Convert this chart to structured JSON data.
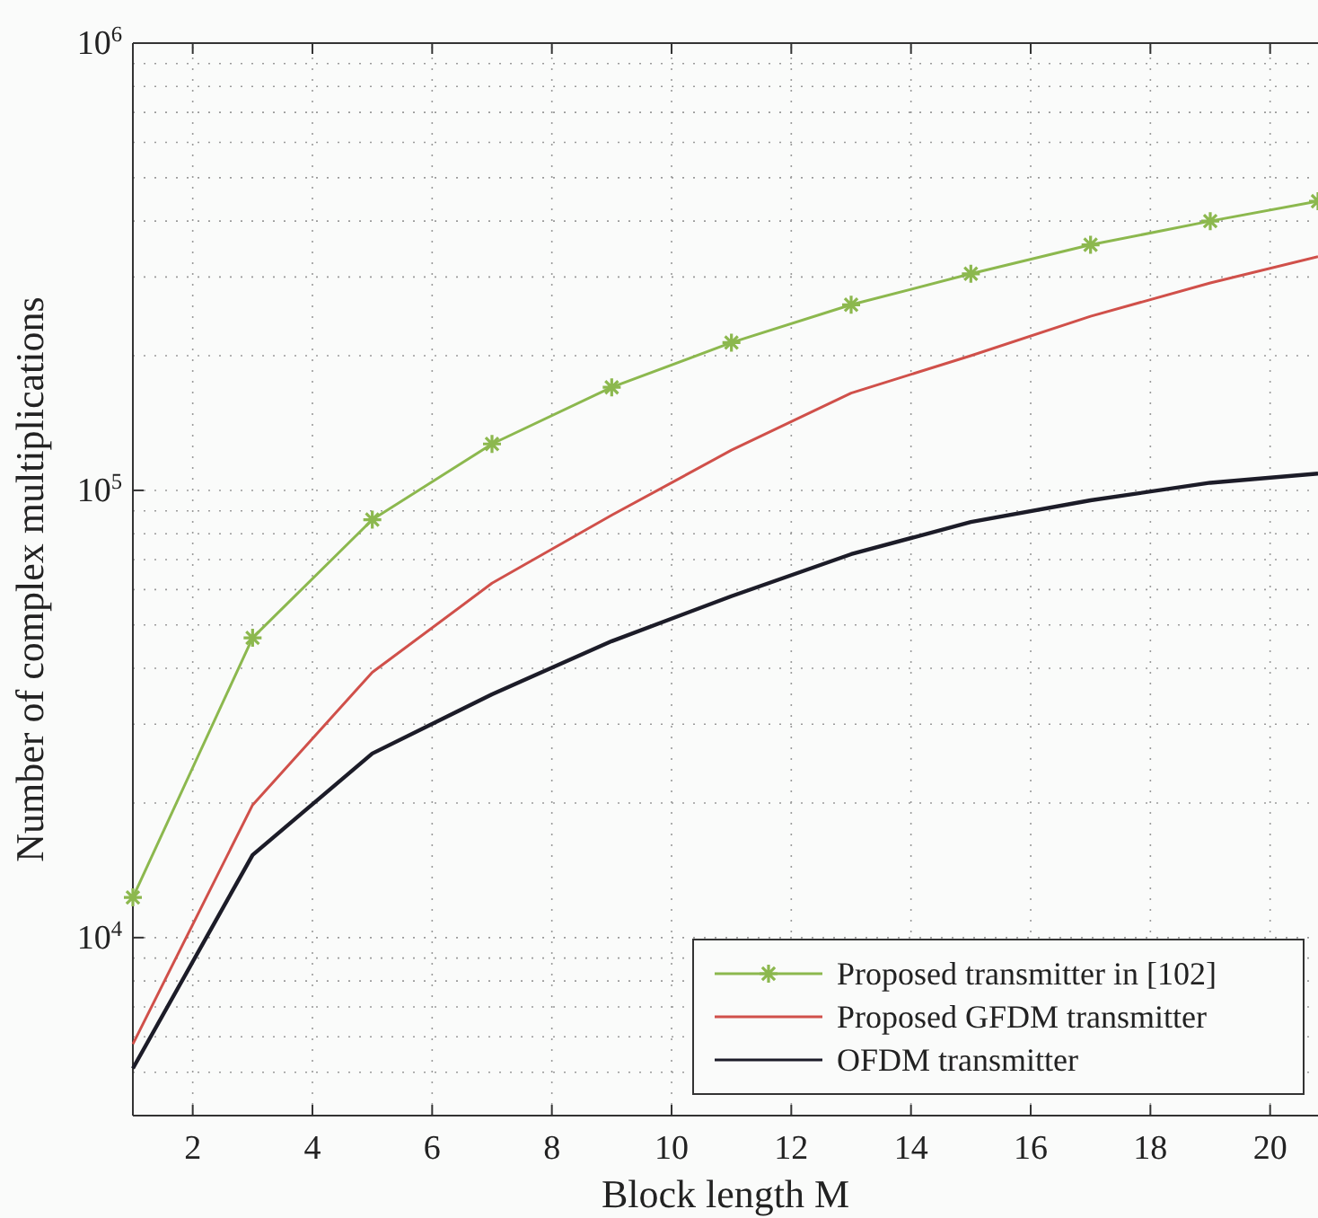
{
  "chart_data": {
    "type": "line",
    "xlabel": "Block length M",
    "ylabel": "Number of complex multiplications",
    "log": "y",
    "grid": true,
    "legend": "bottom right",
    "xlim": [
      1,
      20.8
    ],
    "xticks": [
      2,
      4,
      6,
      8,
      10,
      12,
      14,
      16,
      18,
      20
    ],
    "ylim": [
      4000,
      1000000
    ],
    "yticks": [
      {
        "value": 10000,
        "label": "10$^{4}$"
      },
      {
        "value": 100000,
        "label": "10$^{5}$"
      },
      {
        "value": 1000000,
        "label": "10$^{6}$"
      }
    ],
    "x": [
      1,
      3,
      5,
      7,
      9,
      11,
      13,
      15,
      17,
      19,
      20.8
    ],
    "series": [
      {
        "name": "Proposed transmitter in [102]",
        "color": "#8cb84e",
        "marker": "cross",
        "values": [
          12300,
          46800,
          86000,
          127000,
          170000,
          214000,
          260000,
          305000,
          354000,
          400000,
          443000
        ]
      },
      {
        "name": "Proposed GFDM transmitter",
        "color": "#d0504a",
        "marker": "none",
        "values": [
          5780,
          19800,
          39200,
          62000,
          88000,
          123000,
          165000,
          200000,
          245000,
          291000,
          333000
        ]
      },
      {
        "name": "OFDM transmitter",
        "color": "#1c1c28",
        "marker": "none",
        "values": [
          5100,
          15300,
          25800,
          35000,
          46000,
          58000,
          72000,
          85000,
          95000,
          104000,
          109000
        ]
      }
    ]
  }
}
